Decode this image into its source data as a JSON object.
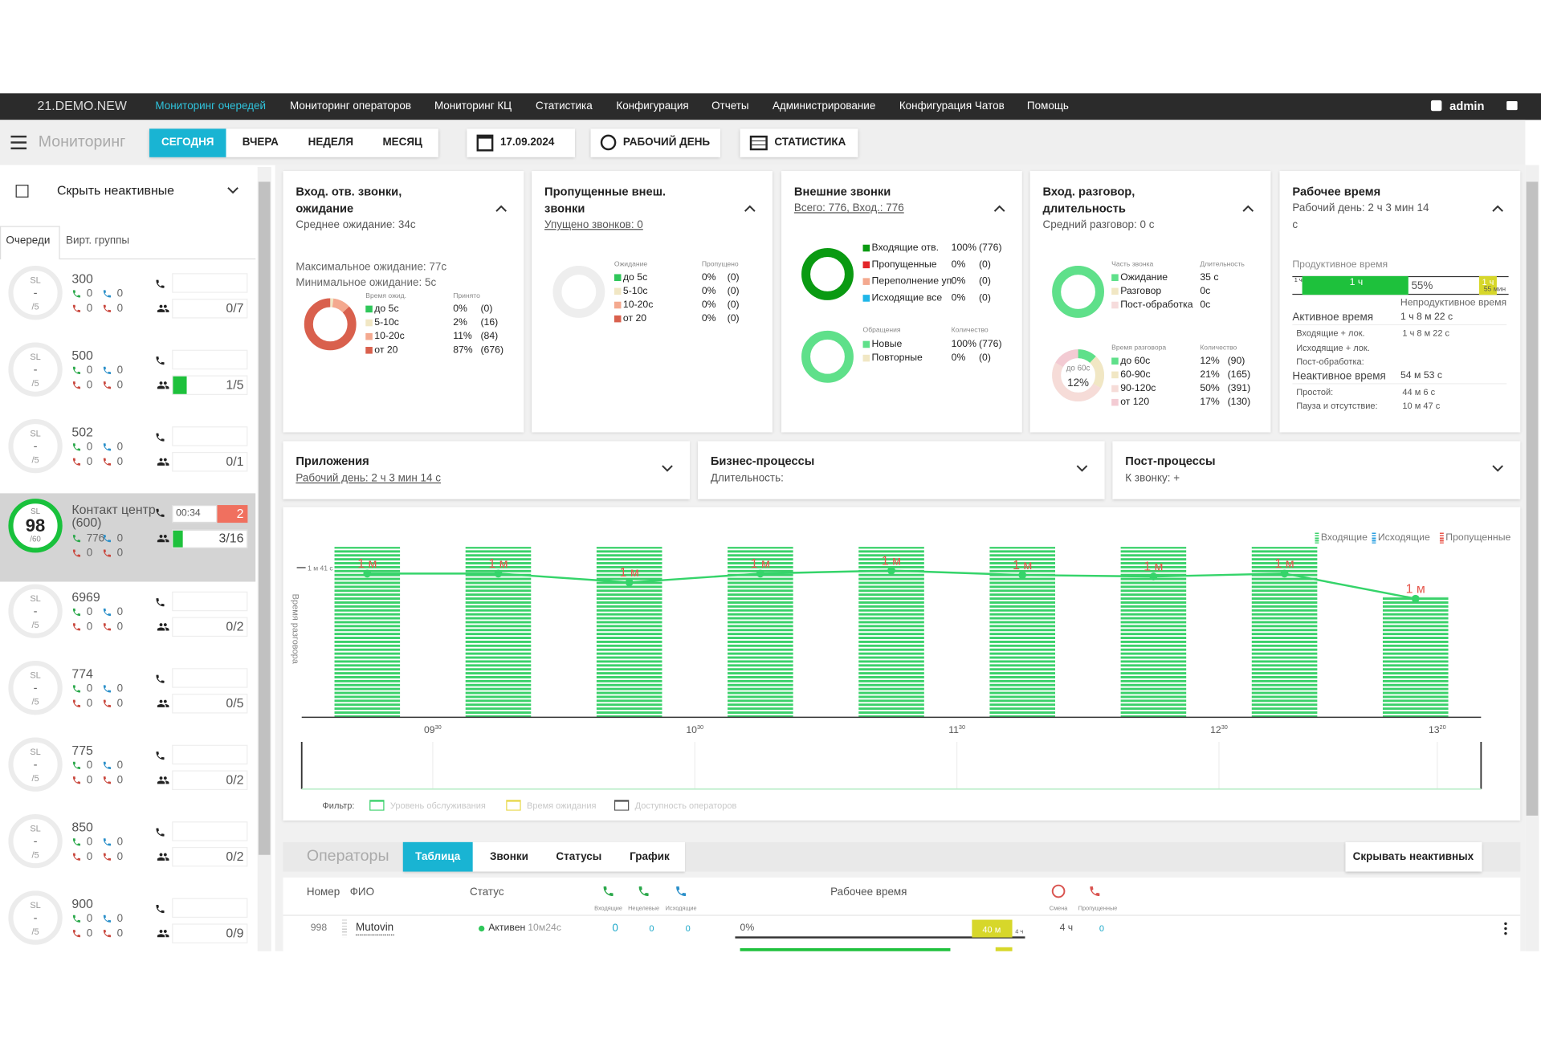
{
  "nav": {
    "brand": "21.DEMO.NEW",
    "items": [
      "Мониторинг очередей",
      "Мониторинг операторов",
      "Мониторинг КЦ",
      "Статистика",
      "Конфигурация",
      "Отчеты",
      "Администрирование",
      "Конфигурация Чатов",
      "Помощь"
    ],
    "user": "admin"
  },
  "toolbar": {
    "title": "Мониторинг",
    "periods": [
      "СЕГОДНЯ",
      "ВЧЕРА",
      "НЕДЕЛЯ",
      "МЕСЯЦ"
    ],
    "date": "17.09.2024",
    "workday": "РАБОЧИЙ ДЕНЬ",
    "statistics": "СТАТИСТИКА"
  },
  "sidebar": {
    "filter": "Скрыть неактивные",
    "tabs": [
      "Очереди",
      "Вирт. группы"
    ],
    "sl_label": "SL",
    "queues": [
      {
        "name": "300",
        "sl": "-",
        "target": "/5",
        "incoming": 0,
        "outgoing": 0,
        "missed_in": 0,
        "missed_out": 0,
        "agents": "0/7"
      },
      {
        "name": "500",
        "sl": "-",
        "target": "/5",
        "incoming": 0,
        "outgoing": 0,
        "missed_in": 0,
        "missed_out": 0,
        "agents": "1/5"
      },
      {
        "name": "502",
        "sl": "-",
        "target": "/5",
        "incoming": 0,
        "outgoing": 0,
        "missed_in": 0,
        "missed_out": 0,
        "agents": "0/1"
      },
      {
        "name": "Контакт центр (600)",
        "sl": 98,
        "target": "/60",
        "incoming": 776,
        "outgoing": 0,
        "missed_in": 0,
        "missed_out": 0,
        "timer": "00:34",
        "waiting": 2,
        "agents": "3/16"
      },
      {
        "name": "6969",
        "sl": "-",
        "target": "/5",
        "incoming": 0,
        "outgoing": 0,
        "missed_in": 0,
        "missed_out": 0,
        "agents": "0/2"
      },
      {
        "name": "774",
        "sl": "-",
        "target": "/5",
        "incoming": 0,
        "outgoing": 0,
        "missed_in": 0,
        "missed_out": 0,
        "agents": "0/5"
      },
      {
        "name": "775",
        "sl": "-",
        "target": "/5",
        "incoming": 0,
        "outgoing": 0,
        "missed_in": 0,
        "missed_out": 0,
        "agents": "0/2"
      },
      {
        "name": "850",
        "sl": "-",
        "target": "/5",
        "incoming": 0,
        "outgoing": 0,
        "missed_in": 0,
        "missed_out": 0,
        "agents": "0/2"
      },
      {
        "name": "900",
        "sl": "-",
        "target": "/5",
        "incoming": 0,
        "outgoing": 0,
        "missed_in": 0,
        "missed_out": 0,
        "agents": "0/9"
      }
    ]
  },
  "cards": [
    {
      "title": "Вход. отв. звонки, ожидание",
      "subtitle": "Среднее ожидание: 34с",
      "notes": [
        "Максимальное ожидание: 77с",
        "Минимальное ожидание: 5с"
      ],
      "charts": [
        {
          "headers": [
            "Время ожид.",
            "Принято"
          ],
          "rows": [
            {
              "name": "до 5с",
              "color": "#2fc75a",
              "value": 0,
              "value_label": "0%",
              "count": "(0)"
            },
            {
              "name": "5-10с",
              "color": "#f1e7c4",
              "value": 2,
              "value_label": "2%",
              "count": "(16)"
            },
            {
              "name": "10-20с",
              "color": "#f4a98f",
              "value": 11,
              "value_label": "11%",
              "count": "(84)"
            },
            {
              "name": "от 20",
              "color": "#d9604d",
              "value": 87,
              "value_label": "87%",
              "count": "(676)"
            }
          ]
        }
      ]
    },
    {
      "title": "Пропущенные внеш. звонки",
      "subtitle": "Упущено звонков: 0",
      "charts": [
        {
          "headers": [
            "Ожидание",
            "Пропущено"
          ],
          "rows": [
            {
              "name": "до 5с",
              "color": "#2fc75a",
              "value": 0,
              "value_label": "0%",
              "count": "(0)"
            },
            {
              "name": "5-10с",
              "color": "#f1e7c4",
              "value": 0,
              "value_label": "0%",
              "count": "(0)"
            },
            {
              "name": "10-20с",
              "color": "#f4a98f",
              "value": 0,
              "value_label": "0%",
              "count": "(0)"
            },
            {
              "name": "от 20",
              "color": "#d9604d",
              "value": 0,
              "value_label": "0%",
              "count": "(0)"
            }
          ]
        }
      ]
    },
    {
      "title": "Внешние звонки",
      "subtitle": "Всего: 776, Вход.: 776",
      "charts": [
        {
          "rows": [
            {
              "name": "Входящие отв.",
              "color": "#0a9a12",
              "value": 100,
              "value_label": "100%",
              "count": "(776)"
            },
            {
              "name": "Пропущенные",
              "color": "#e3262a",
              "value": 0,
              "value_label": "0%",
              "count": "(0)"
            },
            {
              "name": "Переполнение уп.",
              "color": "#f4a98f",
              "value": 0,
              "value_label": "0%",
              "count": "(0)"
            },
            {
              "name": "Исходящие все",
              "color": "#1fb6e8",
              "value": 0,
              "value_label": "0%",
              "count": "(0)"
            }
          ]
        },
        {
          "headers": [
            "Обращения",
            "Количество"
          ],
          "rows": [
            {
              "name": "Новые",
              "color": "#5fe08a",
              "value": 100,
              "value_label": "100%",
              "count": "(776)"
            },
            {
              "name": "Повторные",
              "color": "#f1e7c4",
              "value": 0,
              "value_label": "0%",
              "count": "(0)"
            }
          ]
        }
      ]
    },
    {
      "title": "Вход. разговор, длительность",
      "subtitle": "Средний разговор: 0 с",
      "charts": [
        {
          "headers": [
            "Часть звонка",
            "Длительность"
          ],
          "rows": [
            {
              "name": "Ожидание",
              "color": "#5fe08a",
              "duration": "35 с"
            },
            {
              "name": "Разговор",
              "color": "#f1e7c4",
              "duration": "0с"
            },
            {
              "name": "Пост-обработка",
              "color": "#f6dcdc",
              "duration": "0с"
            }
          ]
        },
        {
          "headers": [
            "Время разговора",
            "Количество"
          ],
          "rows": [
            {
              "name": "до 60с",
              "color": "#5fe08a",
              "value": 12,
              "value_label": "12%",
              "count": "(90)"
            },
            {
              "name": "60-90с",
              "color": "#f1e7c4",
              "value": 21,
              "value_label": "21%",
              "count": "(165)"
            },
            {
              "name": "90-120с",
              "color": "#f6dcd8",
              "value": 50,
              "value_label": "50%",
              "count": "(391)"
            },
            {
              "name": "от 120",
              "color": "#f3cbd3",
              "value": 17,
              "value_label": "17%",
              "count": "(130)"
            }
          ]
        }
      ]
    },
    {
      "title": "Рабочее время",
      "subtitle": "Рабочий день: 2 ч 3 мин 14 с",
      "productive": "Продуктивное время",
      "bar_labels": [
        "1 ч",
        "1 ч",
        "55%",
        "1 ч",
        "55 мин"
      ],
      "unproductive": "Непродуктивное время",
      "groups": [
        {
          "label": "Активное время",
          "value": "1 ч 8 м 22 с",
          "items": [
            {
              "label": "Входящие + лок.",
              "value": "1 ч 8 м 22 с"
            },
            {
              "label": "Исходящие + лок."
            },
            {
              "label": "Пост-обработка:"
            }
          ]
        },
        {
          "label": "Неактивное время",
          "value": "54 м 53 с",
          "items": [
            {
              "label": "Простой:",
              "value": "44 м 6 с"
            },
            {
              "label": "Пауза и отсутствие:",
              "value": "10 м 47 с"
            }
          ]
        }
      ]
    }
  ],
  "panels": [
    {
      "title": "Приложения",
      "subtitle": "Рабочий день: 2 ч 3 мин 14 с"
    },
    {
      "title": "Бизнес-процессы",
      "subtitle": "Длительность:"
    },
    {
      "title": "Пост-процессы",
      "subtitle": "К звонку: +"
    }
  ],
  "chart_data": {
    "type": "bar",
    "y_label": "Время разговора",
    "x": [
      9.25,
      9.75,
      10.25,
      10.75,
      11.25,
      11.75,
      12.25,
      12.75,
      13.25
    ],
    "series": [
      {
        "name": "Входящие",
        "color": "#3ad16a",
        "values": [
          115,
          115,
          115,
          115,
          115,
          115,
          115,
          115,
          82
        ]
      },
      {
        "name": "Исходящие",
        "color": "#2a9fe0",
        "values": [
          null,
          null,
          null,
          null,
          null,
          null,
          null,
          null,
          null
        ]
      },
      {
        "name": "Пропущенные",
        "color": "#e8574c",
        "values": [
          null,
          null,
          null,
          null,
          null,
          null,
          null,
          null,
          null
        ]
      }
    ],
    "line": {
      "color": "#35d46a",
      "label_color": "#e6574c",
      "values": [
        97,
        97,
        91,
        97,
        99,
        96,
        95,
        97,
        80
      ],
      "value_labels": [
        "1 м",
        "1 м",
        "1 м",
        "1 м",
        "1 м",
        "1 м",
        "1 м",
        "1 м",
        "1 м"
      ]
    },
    "xlim": [
      9,
      13.5
    ],
    "xticks": [
      {
        "value": 9.5,
        "label": "09",
        "sup": "30"
      },
      {
        "value": 10.5,
        "label": "10",
        "sup": "30"
      },
      {
        "value": 11.5,
        "label": "11",
        "sup": "30"
      },
      {
        "value": 12.5,
        "label": "12",
        "sup": "30"
      },
      {
        "value": 13.333,
        "label": "13",
        "sup": "20"
      }
    ],
    "ylim": [
      0,
      120
    ],
    "yticks": [
      {
        "value": 101,
        "label": "1 м 41 с"
      }
    ],
    "filter": {
      "label": "Фильтр:",
      "items": [
        {
          "name": "Уровень обслуживания",
          "color": "#3ad16a"
        },
        {
          "name": "Время ожидания",
          "color": "#e8d84a"
        },
        {
          "name": "Доступность операторов",
          "color": "#555555"
        }
      ]
    }
  },
  "operators": {
    "title": "Операторы",
    "tabs": [
      "Таблица",
      "Звонки",
      "Статусы",
      "График"
    ],
    "hide_inactive": "Скрывать неактивных",
    "columns": {
      "number": "Номер",
      "name": "ФИО",
      "status": "Статус",
      "incoming": "Входящие",
      "nontarget": "Нецелевые",
      "outgoing": "Исходящие",
      "work_time": "Рабочее время",
      "shift": "Смена",
      "missed": "Пропущенные"
    },
    "rows": [
      {
        "number": 998,
        "name": "Mutovin",
        "status": "Активен",
        "status_time": "10м24с",
        "incoming": 0,
        "nontarget": 0,
        "outgoing": 0,
        "work_pct": "0%",
        "work_bar": "40 м",
        "work_end": "4 ч",
        "shift": "4 ч",
        "missed": 0
      }
    ]
  }
}
